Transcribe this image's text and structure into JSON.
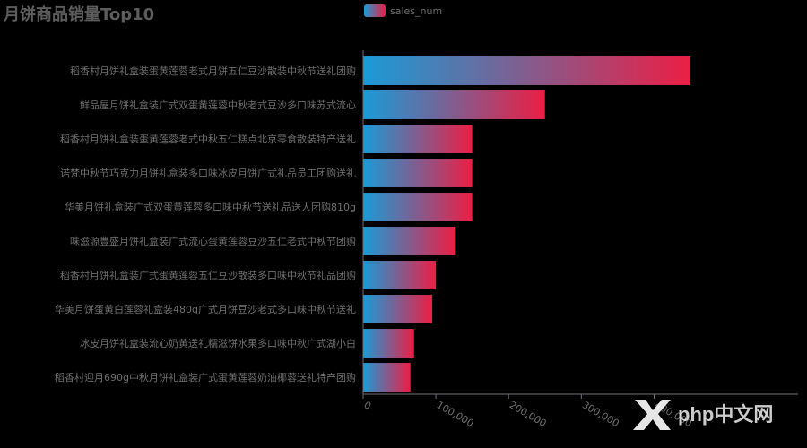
{
  "chart_data": {
    "type": "bar",
    "orientation": "horizontal",
    "title": "月饼商品销量Top10",
    "legend": {
      "position": "top",
      "entries": [
        "sales_num"
      ]
    },
    "series": [
      {
        "name": "sales_num",
        "values": [
          450000,
          250000,
          150000,
          150000,
          150000,
          126000,
          100000,
          95000,
          70000,
          65000
        ]
      }
    ],
    "categories": [
      "稻香村月饼礼盒装蛋黄莲蓉老式月饼五仁豆沙散装中秋节送礼团购",
      "鲜品屋月饼礼盒装广式双蛋黄莲蓉中秋老式豆沙多口味苏式流心",
      "稻香村月饼礼盒装蛋黄莲蓉老式中秋五仁糕点北京零食散装特产送礼",
      "诺梵中秋节巧克力月饼礼盒装多口味冰皮月饼广式礼品员工团购送礼",
      "华美月饼礼盒装广式双蛋黄莲蓉多口味中秋节送礼品送人团购810g",
      "味滋源豊盛月饼礼盒装广式流心蛋黄莲蓉豆沙五仁老式中秋节团购",
      "稻香村月饼礼盒装广式蛋黄莲蓉五仁豆沙散装多口味中秋节礼品团购",
      "华美月饼蛋黄白莲蓉礼盒装480g广式月饼豆沙老式多口味中秋节送礼",
      "冰皮月饼礼盒装流心奶黄送礼糯滋饼水果多口味中秋广式湖小白",
      "稻香村迎月690g中秋月饼礼盒装广式蛋黄莲蓉奶油椰蓉送礼特产团购"
    ],
    "xaxis_ticks": [
      "0",
      "100,000",
      "200,000",
      "300,000",
      "400,000"
    ],
    "xlim": [
      0,
      450000
    ],
    "grid": false,
    "colors": {
      "gradient_start": "#1a9bd7",
      "gradient_end": "#ec1e44"
    }
  },
  "watermark": {
    "text": "php中文网"
  }
}
